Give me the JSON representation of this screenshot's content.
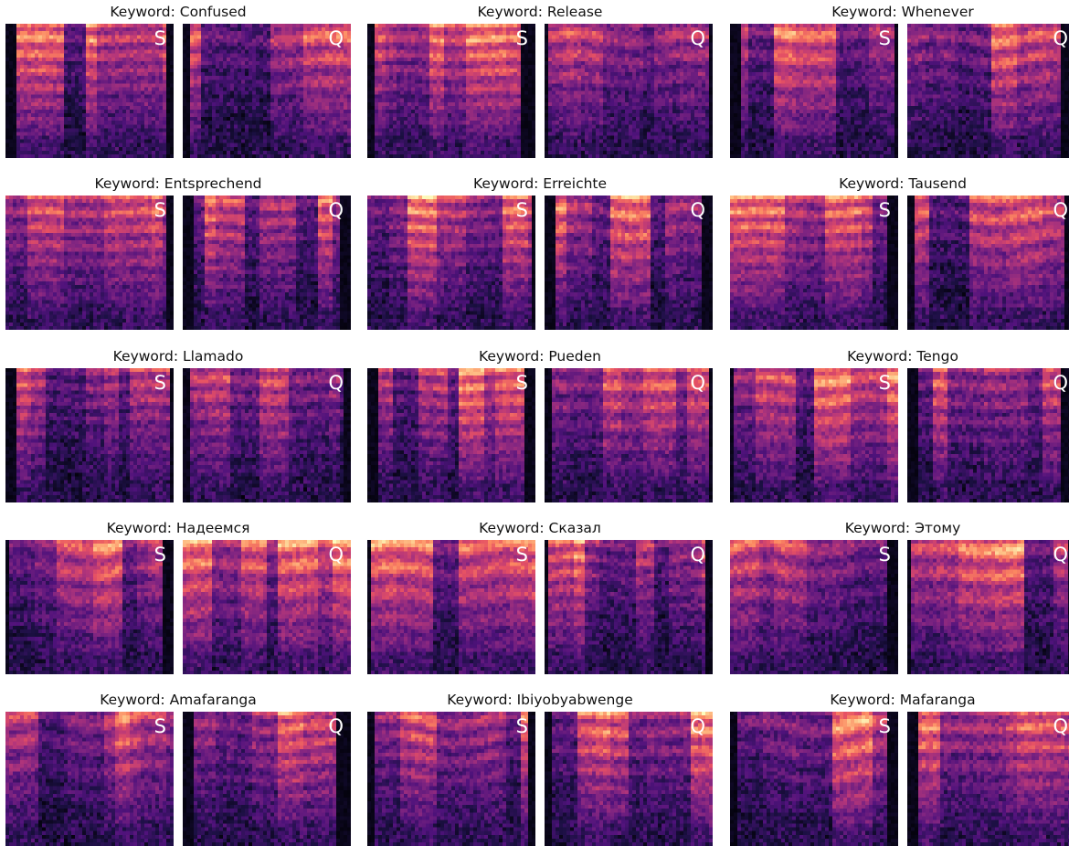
{
  "title_prefix": "Keyword: ",
  "panel_labels": {
    "support": "S",
    "query": "Q"
  },
  "colormap": "magma",
  "keywords": [
    "Confused",
    "Release",
    "Whenever",
    "Entsprechend",
    "Erreichte",
    "Tausend",
    "Llamado",
    "Pueden",
    "Tengo",
    "Надеемся",
    "Сказал",
    "Этому",
    "Amafaranga",
    "Ibiyobyabwenge",
    "Mafaranga"
  ],
  "titles": [
    "Keyword: Confused",
    "Keyword: Release",
    "Keyword: Whenever",
    "Keyword: Entsprechend",
    "Keyword: Erreichte",
    "Keyword: Tausend",
    "Keyword: Llamado",
    "Keyword: Pueden",
    "Keyword: Tengo",
    "Keyword: Надеемся",
    "Keyword: Сказал",
    "Keyword: Этому",
    "Keyword: Amafaranga",
    "Keyword: Ibiyobyabwenge",
    "Keyword: Mafaranga"
  ]
}
